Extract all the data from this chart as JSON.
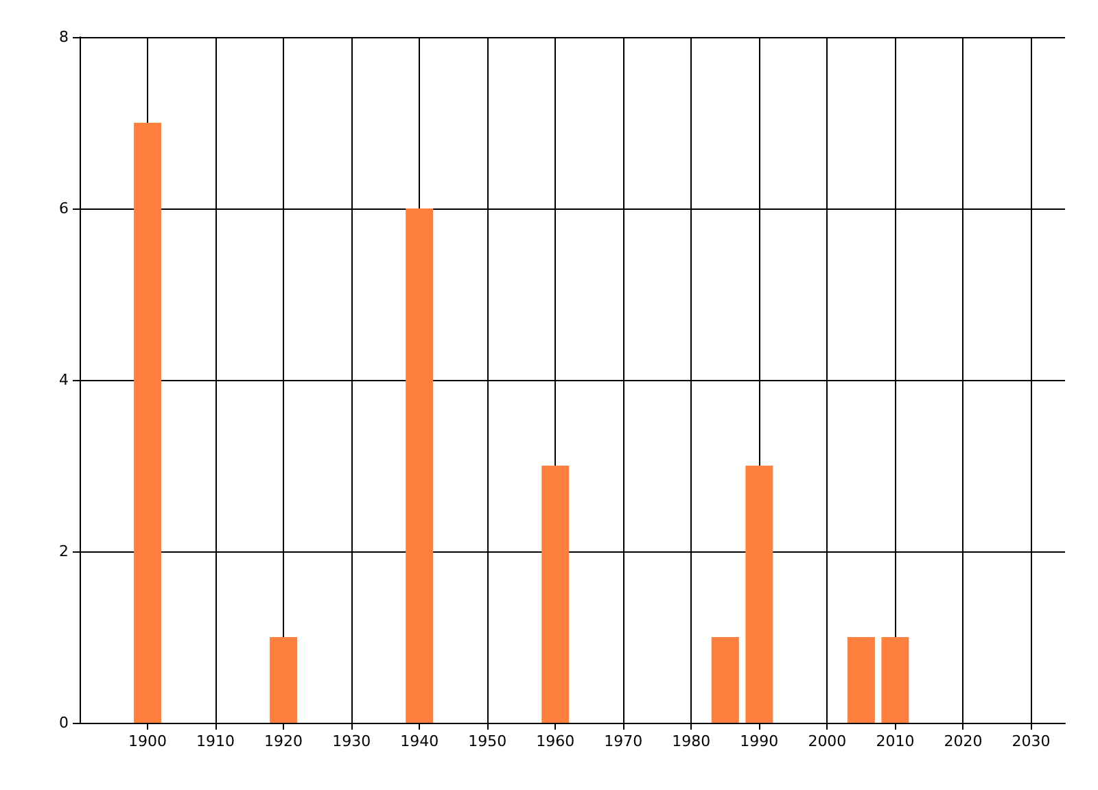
{
  "chart_data": {
    "type": "bar",
    "x": [
      1900,
      1920,
      1940,
      1960,
      1985,
      1990,
      2005,
      2010
    ],
    "values": [
      7,
      1,
      6,
      3,
      1,
      3,
      1,
      1
    ],
    "color": "#ff7f3f",
    "xlim": [
      1890,
      2035
    ],
    "xticks": [
      1900,
      1910,
      1920,
      1930,
      1940,
      1950,
      1960,
      1970,
      1980,
      1990,
      2000,
      2010,
      2020,
      2030
    ],
    "ylim": [
      0,
      8
    ],
    "yticks": [
      0,
      2,
      4,
      6,
      8
    ],
    "grid": true
  }
}
